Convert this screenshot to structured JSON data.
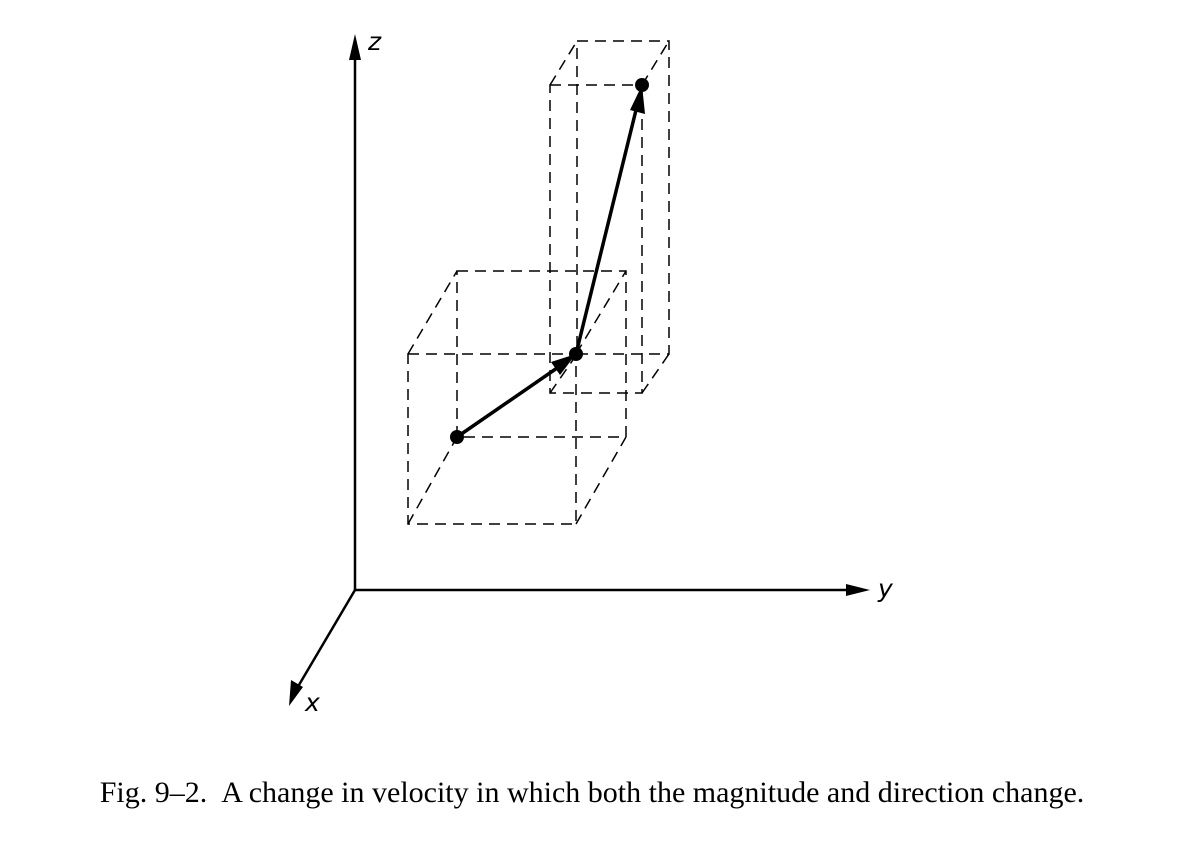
{
  "axes": {
    "x_label": "x",
    "y_label": "y",
    "z_label": "z"
  },
  "caption": {
    "number": "Fig. 9–2.",
    "text": "A change in velocity in which both the magnitude and direction change."
  },
  "colors": {
    "ink": "#000000",
    "background": "#ffffff"
  }
}
